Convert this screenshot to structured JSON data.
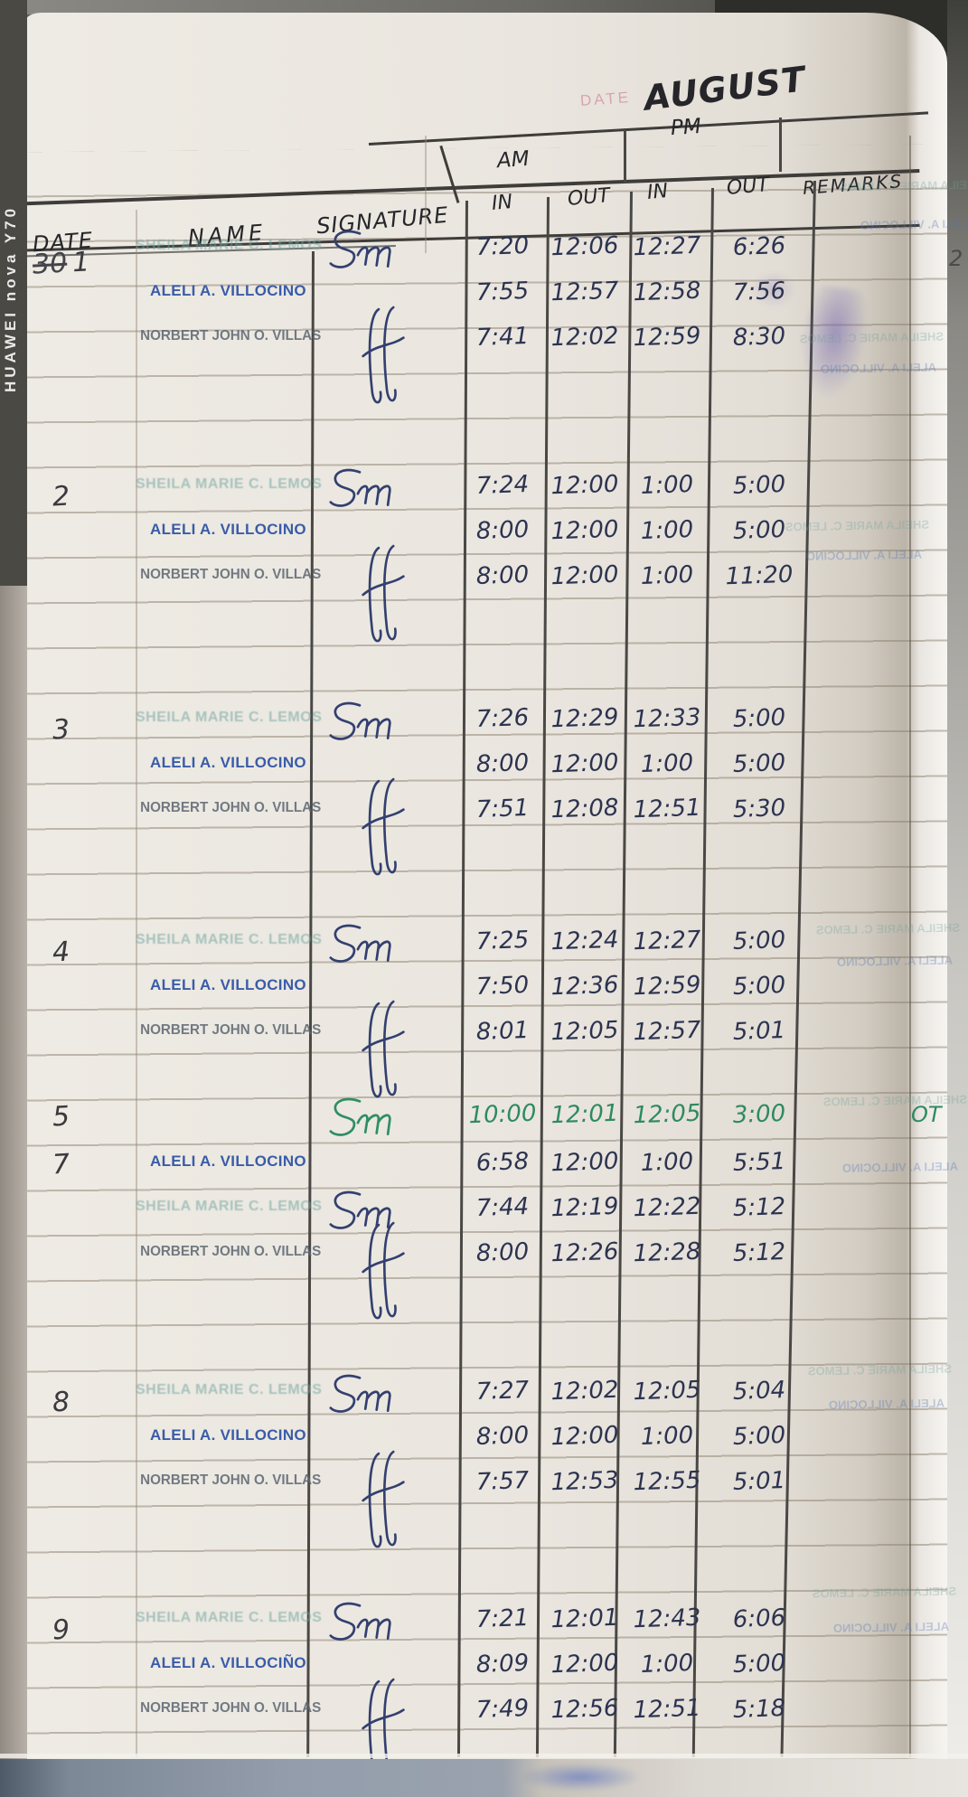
{
  "watermark": "HUAWEI nova Y70",
  "header": {
    "month": "AUGUST",
    "date_label": "DATE",
    "am": "AM",
    "pm": "PM",
    "am_in": "IN",
    "am_out": "OUT",
    "pm_in": "IN",
    "pm_out": "OUT",
    "remarks": "REMARKS",
    "date": "DATE",
    "name": "NAME",
    "signature": "SIGNATURE",
    "page_edge_number": "2"
  },
  "ghost_stamps": [
    "SHEILA MARIE C. LEMOS",
    "ALELI A. VILLOCINO"
  ],
  "entries": [
    {
      "date": "1",
      "date_crossed": "30",
      "rows": [
        {
          "name": "SHEILA MARIE C. LEMOS",
          "stamp": "teal",
          "sig": "sm",
          "ink": "blue",
          "am_in": "7:20",
          "am_out": "12:06",
          "pm_in": "12:27",
          "pm_out": "6:26",
          "remarks": ""
        },
        {
          "name": "ALELI A. VILLOCINO",
          "stamp": "blue",
          "sig": "",
          "ink": "blue",
          "am_in": "7:55",
          "am_out": "12:57",
          "pm_in": "12:58",
          "pm_out": "7:56",
          "remarks": ""
        },
        {
          "name": "NORBERT JOHN O. VILLAS",
          "stamp": "gray",
          "sig": "ff",
          "ink": "blue",
          "am_in": "7:41",
          "am_out": "12:02",
          "pm_in": "12:59",
          "pm_out": "8:30",
          "remarks": ""
        }
      ]
    },
    {
      "date": "2",
      "rows": [
        {
          "name": "SHEILA MARIE C. LEMOS",
          "stamp": "teal",
          "sig": "sm",
          "ink": "blue",
          "am_in": "7:24",
          "am_out": "12:00",
          "pm_in": "1:00",
          "pm_out": "5:00",
          "remarks": ""
        },
        {
          "name": "ALELI A. VILLOCINO",
          "stamp": "blue",
          "sig": "",
          "ink": "blue",
          "am_in": "8:00",
          "am_out": "12:00",
          "pm_in": "1:00",
          "pm_out": "5:00",
          "remarks": ""
        },
        {
          "name": "NORBERT JOHN O. VILLAS",
          "stamp": "gray",
          "sig": "ff",
          "ink": "blue",
          "am_in": "8:00",
          "am_out": "12:00",
          "pm_in": "1:00",
          "pm_out": "11:20",
          "remarks": ""
        }
      ]
    },
    {
      "date": "3",
      "rows": [
        {
          "name": "SHEILA MARIE C. LEMOS",
          "stamp": "teal",
          "sig": "sm",
          "ink": "blue",
          "am_in": "7:26",
          "am_out": "12:29",
          "pm_in": "12:33",
          "pm_out": "5:00",
          "remarks": ""
        },
        {
          "name": "ALELI A. VILLOCINO",
          "stamp": "blue",
          "sig": "",
          "ink": "blue",
          "am_in": "8:00",
          "am_out": "12:00",
          "pm_in": "1:00",
          "pm_out": "5:00",
          "remarks": ""
        },
        {
          "name": "NORBERT JOHN O. VILLAS",
          "stamp": "gray",
          "sig": "ff",
          "ink": "blue",
          "am_in": "7:51",
          "am_out": "12:08",
          "pm_in": "12:51",
          "pm_out": "5:30",
          "remarks": ""
        }
      ]
    },
    {
      "date": "4",
      "rows": [
        {
          "name": "SHEILA MARIE C. LEMOS",
          "stamp": "teal",
          "sig": "sm",
          "ink": "blue",
          "am_in": "7:25",
          "am_out": "12:24",
          "pm_in": "12:27",
          "pm_out": "5:00",
          "remarks": ""
        },
        {
          "name": "ALELI A. VILLOCINO",
          "stamp": "blue",
          "sig": "",
          "ink": "blue",
          "am_in": "7:50",
          "am_out": "12:36",
          "pm_in": "12:59",
          "pm_out": "5:00",
          "remarks": ""
        },
        {
          "name": "NORBERT JOHN O. VILLAS",
          "stamp": "gray",
          "sig": "ff",
          "ink": "blue",
          "am_in": "8:01",
          "am_out": "12:05",
          "pm_in": "12:57",
          "pm_out": "5:01",
          "remarks": ""
        }
      ]
    },
    {
      "date": "5",
      "rows": [
        {
          "name": "",
          "stamp": "none",
          "sig": "sm-green",
          "ink": "green",
          "am_in": "10:00",
          "am_out": "12:01",
          "pm_in": "12:05",
          "pm_out": "3:00",
          "remarks": "OT"
        }
      ]
    },
    {
      "date": "7",
      "rows": [
        {
          "name": "ALELI A. VILLOCINO",
          "stamp": "blue",
          "sig": "",
          "ink": "blue",
          "am_in": "6:58",
          "am_out": "12:00",
          "pm_in": "1:00",
          "pm_out": "5:51",
          "remarks": ""
        },
        {
          "name": "SHEILA MARIE C. LEMOS",
          "stamp": "teal",
          "sig": "sm",
          "ink": "blue",
          "am_in": "7:44",
          "am_out": "12:19",
          "pm_in": "12:22",
          "pm_out": "5:12",
          "remarks": ""
        },
        {
          "name": "NORBERT JOHN O. VILLAS",
          "stamp": "gray",
          "sig": "ff",
          "ink": "blue",
          "am_in": "8:00",
          "am_out": "12:26",
          "pm_in": "12:28",
          "pm_out": "5:12",
          "remarks": ""
        }
      ]
    },
    {
      "date": "8",
      "rows": [
        {
          "name": "SHEILA MARIE C. LEMOS",
          "stamp": "teal",
          "sig": "sm",
          "ink": "blue",
          "am_in": "7:27",
          "am_out": "12:02",
          "pm_in": "12:05",
          "pm_out": "5:04",
          "remarks": ""
        },
        {
          "name": "ALELI A. VILLOCINO",
          "stamp": "blue",
          "sig": "",
          "ink": "blue",
          "am_in": "8:00",
          "am_out": "12:00",
          "pm_in": "1:00",
          "pm_out": "5:00",
          "remarks": ""
        },
        {
          "name": "NORBERT JOHN O. VILLAS",
          "stamp": "gray",
          "sig": "ff",
          "ink": "blue",
          "am_in": "7:57",
          "am_out": "12:53",
          "pm_in": "12:55",
          "pm_out": "5:01",
          "remarks": ""
        }
      ]
    },
    {
      "date": "9",
      "rows": [
        {
          "name": "SHEILA MARIE C. LEMOS",
          "stamp": "teal",
          "sig": "sm",
          "ink": "blue",
          "am_in": "7:21",
          "am_out": "12:01",
          "pm_in": "12:43",
          "pm_out": "6:06",
          "remarks": ""
        },
        {
          "name": "ALELI A. VILLOCIÑO",
          "stamp": "blue",
          "sig": "",
          "ink": "blue",
          "am_in": "8:09",
          "am_out": "12:00",
          "pm_in": "1:00",
          "pm_out": "5:00",
          "remarks": ""
        },
        {
          "name": "NORBERT JOHN O. VILLAS",
          "stamp": "gray",
          "sig": "ff",
          "ink": "blue",
          "am_in": "7:49",
          "am_out": "12:56",
          "pm_in": "12:51",
          "pm_out": "5:18",
          "remarks": ""
        }
      ]
    }
  ]
}
